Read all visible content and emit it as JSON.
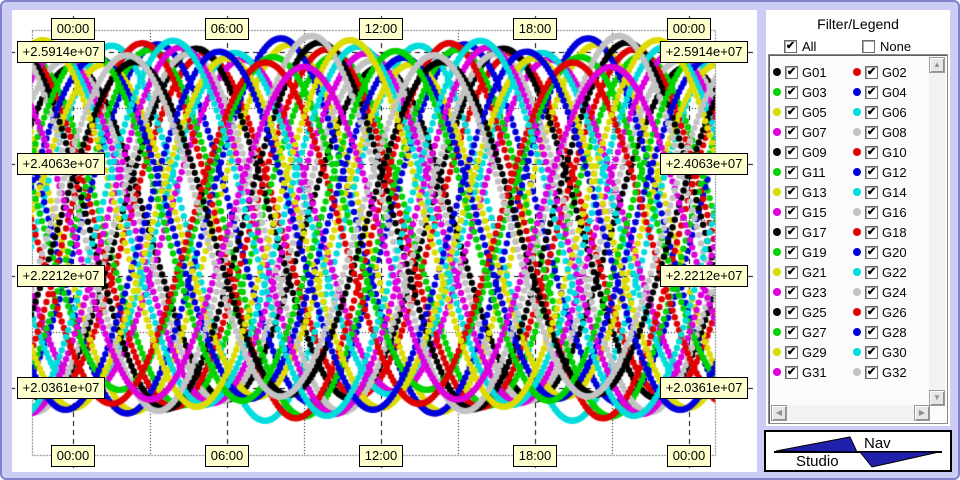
{
  "window": {
    "bg_color": "#ccccf5",
    "border_color": "#8181cf",
    "tick_box_color": "#ffffcd"
  },
  "legend": {
    "title": "Filter/Legend",
    "all_label": "All",
    "all_checked": true,
    "none_label": "None",
    "none_checked": false,
    "items": [
      {
        "id": "G01",
        "color": "#000000",
        "checked": true
      },
      {
        "id": "G02",
        "color": "#e00000",
        "checked": true
      },
      {
        "id": "G03",
        "color": "#00d300",
        "checked": true
      },
      {
        "id": "G04",
        "color": "#0000dc",
        "checked": true
      },
      {
        "id": "G05",
        "color": "#dcdc00",
        "checked": true
      },
      {
        "id": "G06",
        "color": "#00dcdc",
        "checked": true
      },
      {
        "id": "G07",
        "color": "#dc00dc",
        "checked": true
      },
      {
        "id": "G08",
        "color": "#c3c3c3",
        "checked": true
      },
      {
        "id": "G09",
        "color": "#000000",
        "checked": true
      },
      {
        "id": "G10",
        "color": "#e00000",
        "checked": true
      },
      {
        "id": "G11",
        "color": "#00d300",
        "checked": true
      },
      {
        "id": "G12",
        "color": "#0000dc",
        "checked": true
      },
      {
        "id": "G13",
        "color": "#dcdc00",
        "checked": true
      },
      {
        "id": "G14",
        "color": "#00dcdc",
        "checked": true
      },
      {
        "id": "G15",
        "color": "#dc00dc",
        "checked": true
      },
      {
        "id": "G16",
        "color": "#c3c3c3",
        "checked": true
      },
      {
        "id": "G17",
        "color": "#000000",
        "checked": true
      },
      {
        "id": "G18",
        "color": "#e00000",
        "checked": true
      },
      {
        "id": "G19",
        "color": "#00d300",
        "checked": true
      },
      {
        "id": "G20",
        "color": "#0000dc",
        "checked": true
      },
      {
        "id": "G21",
        "color": "#dcdc00",
        "checked": true
      },
      {
        "id": "G22",
        "color": "#00dcdc",
        "checked": true
      },
      {
        "id": "G23",
        "color": "#dc00dc",
        "checked": true
      },
      {
        "id": "G24",
        "color": "#c3c3c3",
        "checked": true
      },
      {
        "id": "G25",
        "color": "#000000",
        "checked": true
      },
      {
        "id": "G26",
        "color": "#e00000",
        "checked": true
      },
      {
        "id": "G27",
        "color": "#00d300",
        "checked": true
      },
      {
        "id": "G28",
        "color": "#0000dc",
        "checked": true
      },
      {
        "id": "G29",
        "color": "#dcdc00",
        "checked": true
      },
      {
        "id": "G30",
        "color": "#00dcdc",
        "checked": true
      },
      {
        "id": "G31",
        "color": "#dc00dc",
        "checked": true
      },
      {
        "id": "G32",
        "color": "#c3c3c3",
        "checked": true
      }
    ]
  },
  "logo": {
    "line1": "Nav",
    "line2": "Studio",
    "fill_color": "#2020aa"
  },
  "chart_data": {
    "type": "line",
    "title": "",
    "xlabel": "",
    "ylabel": "",
    "marker_style": "thick beaded dots",
    "grid": {
      "major": "dashed",
      "minor": "dotted",
      "minor_x_step_hours": 3
    },
    "x_tick_labels_top": [
      "00:00",
      "06:00",
      "12:00",
      "18:00",
      "00:00"
    ],
    "x_tick_labels_bottom": [
      "00:00",
      "06:00",
      "12:00",
      "18:00",
      "00:00"
    ],
    "x_tick_hours": [
      0,
      6,
      12,
      18,
      24
    ],
    "xlim_hours": [
      -1.6,
      25.0
    ],
    "y_tick_labels_left": [
      "+2.5914e+07",
      "+2.4063e+07",
      "+2.2212e+07",
      "+2.0361e+07"
    ],
    "y_tick_labels_right": [
      "+2.5914e+07",
      "+2.4063e+07",
      "+2.2212e+07",
      "+2.0361e+07"
    ],
    "y_tick_values": [
      25914000,
      24063000,
      22212000,
      20361000
    ],
    "ylim": [
      19650000,
      26270000
    ],
    "series_model": "value(t) = mean_m + amplitude_m * cos(2*PI*(t - phase_h)/period_h), t in hours",
    "series": [
      {
        "name": "G01",
        "color": "#000000",
        "mean_m": 22920000,
        "amplitude_m": 2750000,
        "period_h": 11.97,
        "phase_h": 0.0
      },
      {
        "name": "G02",
        "color": "#e00000",
        "mean_m": 23040000,
        "amplitude_m": 2820000,
        "period_h": 11.97,
        "phase_h": 5.1
      },
      {
        "name": "G03",
        "color": "#00d300",
        "mean_m": 22960000,
        "amplitude_m": 2890000,
        "period_h": 11.97,
        "phase_h": 10.2
      },
      {
        "name": "G04",
        "color": "#0000dc",
        "mean_m": 23080000,
        "amplitude_m": 2960000,
        "period_h": 11.97,
        "phase_h": 3.3
      },
      {
        "name": "G05",
        "color": "#dcdc00",
        "mean_m": 23000000,
        "amplitude_m": 3030000,
        "period_h": 11.97,
        "phase_h": 8.4
      },
      {
        "name": "G06",
        "color": "#00dcdc",
        "mean_m": 22920000,
        "amplitude_m": 3100000,
        "period_h": 11.97,
        "phase_h": 1.5
      },
      {
        "name": "G07",
        "color": "#dc00dc",
        "mean_m": 23040000,
        "amplitude_m": 2750000,
        "period_h": 11.97,
        "phase_h": 6.6
      },
      {
        "name": "G08",
        "color": "#c3c3c3",
        "mean_m": 22960000,
        "amplitude_m": 2820000,
        "period_h": 11.97,
        "phase_h": 11.7
      },
      {
        "name": "G09",
        "color": "#000000",
        "mean_m": 23080000,
        "amplitude_m": 2890000,
        "period_h": 11.97,
        "phase_h": 4.8
      },
      {
        "name": "G10",
        "color": "#e00000",
        "mean_m": 23000000,
        "amplitude_m": 2960000,
        "period_h": 11.97,
        "phase_h": 9.9
      },
      {
        "name": "G11",
        "color": "#00d300",
        "mean_m": 22920000,
        "amplitude_m": 3030000,
        "period_h": 11.97,
        "phase_h": 3.0
      },
      {
        "name": "G12",
        "color": "#0000dc",
        "mean_m": 23040000,
        "amplitude_m": 3100000,
        "period_h": 11.97,
        "phase_h": 8.1
      },
      {
        "name": "G13",
        "color": "#dcdc00",
        "mean_m": 22960000,
        "amplitude_m": 2750000,
        "period_h": 11.97,
        "phase_h": 1.2
      },
      {
        "name": "G14",
        "color": "#00dcdc",
        "mean_m": 23080000,
        "amplitude_m": 2820000,
        "period_h": 11.97,
        "phase_h": 6.3
      },
      {
        "name": "G15",
        "color": "#dc00dc",
        "mean_m": 23000000,
        "amplitude_m": 2890000,
        "period_h": 11.97,
        "phase_h": 11.4
      },
      {
        "name": "G16",
        "color": "#c3c3c3",
        "mean_m": 22920000,
        "amplitude_m": 2960000,
        "period_h": 11.97,
        "phase_h": 4.5
      },
      {
        "name": "G17",
        "color": "#000000",
        "mean_m": 23040000,
        "amplitude_m": 3030000,
        "period_h": 11.97,
        "phase_h": 9.6
      },
      {
        "name": "G18",
        "color": "#e00000",
        "mean_m": 22960000,
        "amplitude_m": 3100000,
        "period_h": 11.97,
        "phase_h": 2.7
      },
      {
        "name": "G19",
        "color": "#00d300",
        "mean_m": 23080000,
        "amplitude_m": 2750000,
        "period_h": 11.97,
        "phase_h": 7.8
      },
      {
        "name": "G20",
        "color": "#0000dc",
        "mean_m": 23000000,
        "amplitude_m": 2820000,
        "period_h": 11.97,
        "phase_h": 0.9
      },
      {
        "name": "G21",
        "color": "#dcdc00",
        "mean_m": 22920000,
        "amplitude_m": 2890000,
        "period_h": 11.97,
        "phase_h": 6.0
      },
      {
        "name": "G22",
        "color": "#00dcdc",
        "mean_m": 23040000,
        "amplitude_m": 2960000,
        "period_h": 11.97,
        "phase_h": 11.1
      },
      {
        "name": "G23",
        "color": "#dc00dc",
        "mean_m": 22960000,
        "amplitude_m": 3030000,
        "period_h": 11.97,
        "phase_h": 4.2
      },
      {
        "name": "G24",
        "color": "#c3c3c3",
        "mean_m": 23080000,
        "amplitude_m": 3100000,
        "period_h": 11.97,
        "phase_h": 9.3
      },
      {
        "name": "G25",
        "color": "#000000",
        "mean_m": 23000000,
        "amplitude_m": 2750000,
        "period_h": 11.97,
        "phase_h": 2.4
      },
      {
        "name": "G26",
        "color": "#e00000",
        "mean_m": 22920000,
        "amplitude_m": 2820000,
        "period_h": 11.97,
        "phase_h": 7.5
      },
      {
        "name": "G27",
        "color": "#00d300",
        "mean_m": 23040000,
        "amplitude_m": 2890000,
        "period_h": 11.97,
        "phase_h": 0.6
      },
      {
        "name": "G28",
        "color": "#0000dc",
        "mean_m": 22960000,
        "amplitude_m": 2960000,
        "period_h": 11.97,
        "phase_h": 5.7
      },
      {
        "name": "G29",
        "color": "#dcdc00",
        "mean_m": 23080000,
        "amplitude_m": 3030000,
        "period_h": 11.97,
        "phase_h": 10.8
      },
      {
        "name": "G30",
        "color": "#00dcdc",
        "mean_m": 23000000,
        "amplitude_m": 3100000,
        "period_h": 11.97,
        "phase_h": 3.9
      },
      {
        "name": "G31",
        "color": "#dc00dc",
        "mean_m": 22920000,
        "amplitude_m": 2750000,
        "period_h": 11.97,
        "phase_h": 9.0
      },
      {
        "name": "G32",
        "color": "#c3c3c3",
        "mean_m": 23040000,
        "amplitude_m": 2820000,
        "period_h": 11.97,
        "phase_h": 2.1
      }
    ]
  }
}
